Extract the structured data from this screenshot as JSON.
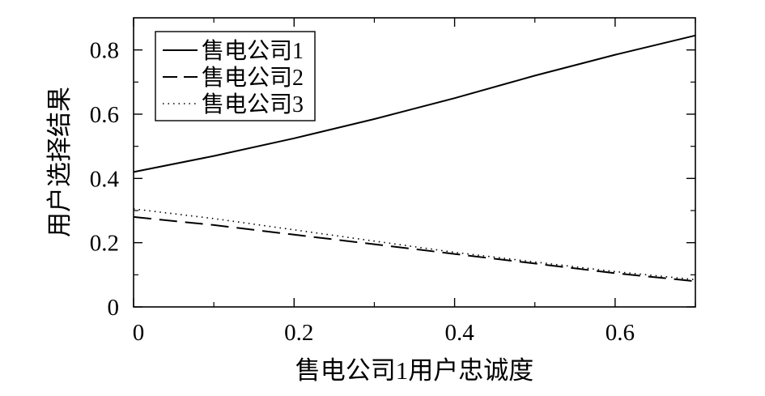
{
  "chart_data": {
    "type": "line",
    "title": "",
    "xlabel": "售电公司1用户忠诚度",
    "ylabel": "用户选择结果",
    "xlim": [
      0,
      0.7
    ],
    "ylim": [
      0,
      0.9
    ],
    "x_ticks": [
      "0",
      "0.2",
      "0.4",
      "0.6"
    ],
    "x_tick_values": [
      0,
      0.2,
      0.4,
      0.6
    ],
    "y_ticks": [
      "0",
      "0.2",
      "0.4",
      "0.6",
      "0.8"
    ],
    "y_tick_values": [
      0,
      0.2,
      0.4,
      0.6,
      0.8
    ],
    "grid": false,
    "legend": "top-left",
    "series": [
      {
        "name": "售电公司1",
        "style": "solid",
        "color": "#000000",
        "x": [
          0,
          0.1,
          0.2,
          0.3,
          0.4,
          0.5,
          0.6,
          0.7
        ],
        "values": [
          0.42,
          0.47,
          0.525,
          0.585,
          0.65,
          0.72,
          0.785,
          0.845
        ]
      },
      {
        "name": "售电公司2",
        "style": "dashed",
        "color": "#000000",
        "x": [
          0,
          0.1,
          0.2,
          0.3,
          0.4,
          0.5,
          0.6,
          0.7
        ],
        "values": [
          0.28,
          0.255,
          0.225,
          0.195,
          0.165,
          0.135,
          0.105,
          0.08
        ]
      },
      {
        "name": "售电公司3",
        "style": "dotted",
        "color": "#000000",
        "x": [
          0,
          0.1,
          0.2,
          0.3,
          0.4,
          0.5,
          0.6,
          0.7
        ],
        "values": [
          0.305,
          0.275,
          0.24,
          0.205,
          0.17,
          0.14,
          0.11,
          0.085
        ]
      }
    ]
  }
}
